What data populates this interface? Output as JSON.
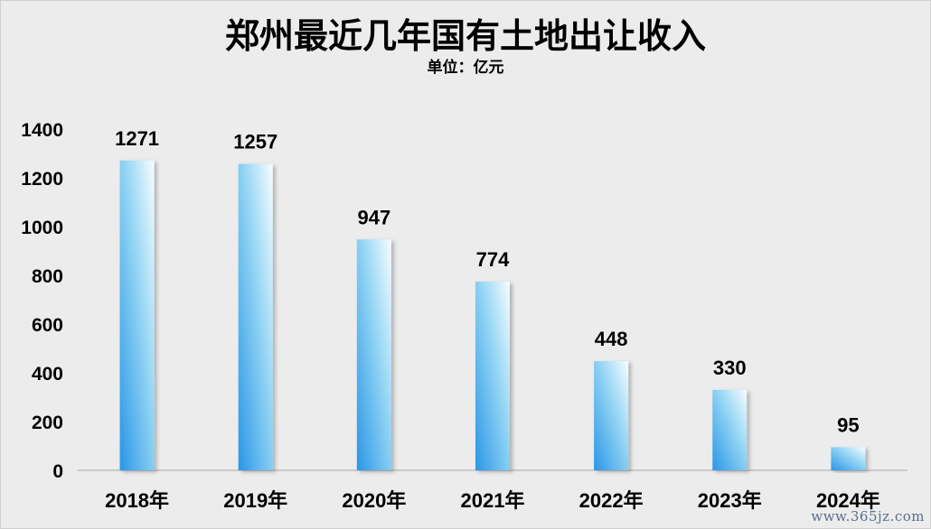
{
  "chart_data": {
    "type": "bar",
    "title": "郑州最近几年国有土地出让收入",
    "subtitle": "单位：亿元",
    "categories": [
      "2018年",
      "2019年",
      "2020年",
      "2021年",
      "2022年",
      "2023年",
      "2024年"
    ],
    "values": [
      1271,
      1257,
      947,
      774,
      448,
      330,
      95
    ],
    "ylim": [
      0,
      1400
    ],
    "yticks": [
      "0",
      "200",
      "400",
      "600",
      "800",
      "1000",
      "1200",
      "1400"
    ],
    "grid": false,
    "legend": "none"
  },
  "colors": {
    "background": "#ececec",
    "bar_gradient_start": "#2b96e6",
    "bar_gradient_mid": "#8fd3f3",
    "bar_gradient_end": "#f6fdff",
    "axis": "#bfbfbf",
    "text": "#000000"
  },
  "watermark": "www.365jz.com"
}
